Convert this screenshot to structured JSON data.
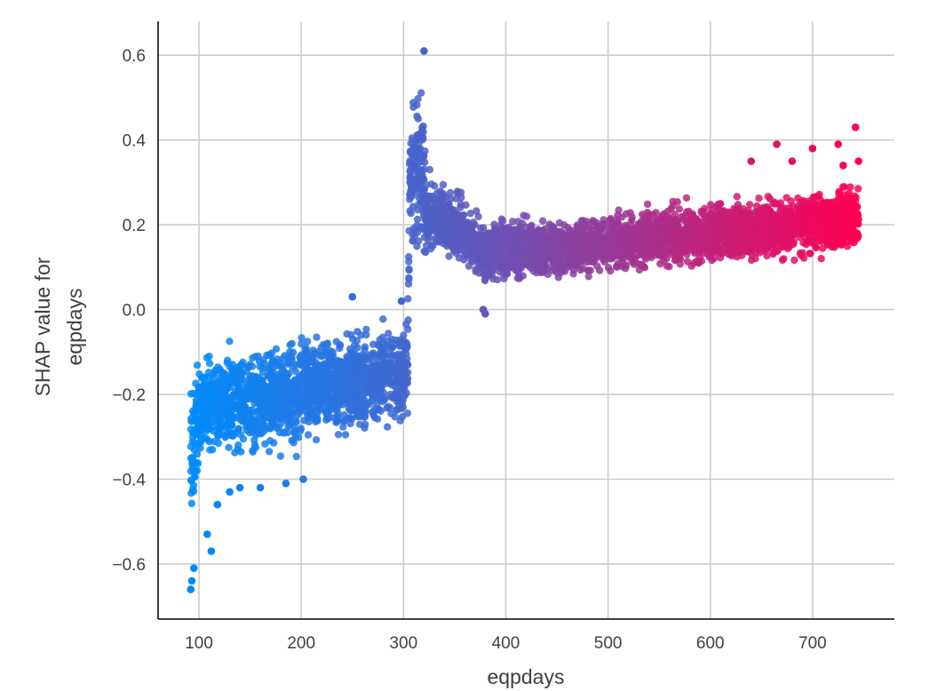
{
  "chart_data": {
    "type": "scatter",
    "title": "",
    "xlabel": "eqpdays",
    "ylabel": [
      "SHAP value for",
      "eqpdays"
    ],
    "xlim": [
      60,
      780
    ],
    "ylim": [
      -0.73,
      0.68
    ],
    "xticks": [
      100,
      200,
      300,
      400,
      500,
      600,
      700
    ],
    "yticks": [
      -0.6,
      -0.4,
      -0.2,
      0.0,
      0.2,
      0.4,
      0.6
    ],
    "ytick_labels": [
      "−0.6",
      "−0.4",
      "−0.2",
      "0.0",
      "0.2",
      "0.4",
      "0.6"
    ],
    "xtick_labels": [
      "100",
      "200",
      "300",
      "400",
      "500",
      "600",
      "700"
    ],
    "grid": true,
    "color_encoding": {
      "low": "#008bfb",
      "high": "#ff0052",
      "by": "eqpdays"
    },
    "series": [
      {
        "description_band": "dense SHAP band",
        "x": [
          92,
          100,
          120,
          150,
          180,
          199,
          205,
          250,
          290,
          304,
          306,
          312,
          318,
          322,
          340,
          355,
          380,
          400,
          450,
          500,
          550,
          600,
          650,
          700,
          745
        ],
        "y_low": [
          -0.58,
          -0.4,
          -0.39,
          -0.39,
          -0.39,
          -0.38,
          -0.35,
          -0.33,
          -0.32,
          -0.32,
          0.05,
          0.04,
          0.08,
          0.1,
          0.1,
          0.08,
          0.03,
          0.04,
          0.05,
          0.06,
          0.07,
          0.08,
          0.08,
          0.09,
          0.09
        ],
        "y_high": [
          -0.08,
          -0.07,
          -0.05,
          -0.04,
          -0.03,
          -0.02,
          -0.02,
          -0.01,
          0.01,
          0.02,
          0.56,
          0.6,
          0.6,
          0.35,
          0.33,
          0.3,
          0.24,
          0.24,
          0.24,
          0.25,
          0.27,
          0.28,
          0.3,
          0.32,
          0.33
        ]
      }
    ],
    "outliers": [
      {
        "x": 92,
        "y": -0.66
      },
      {
        "x": 93,
        "y": -0.64
      },
      {
        "x": 95,
        "y": -0.61
      },
      {
        "x": 108,
        "y": -0.53
      },
      {
        "x": 112,
        "y": -0.57
      },
      {
        "x": 118,
        "y": -0.46
      },
      {
        "x": 130,
        "y": -0.43
      },
      {
        "x": 140,
        "y": -0.42
      },
      {
        "x": 160,
        "y": -0.42
      },
      {
        "x": 185,
        "y": -0.41
      },
      {
        "x": 202,
        "y": -0.4
      },
      {
        "x": 250,
        "y": 0.03
      },
      {
        "x": 298,
        "y": 0.02
      },
      {
        "x": 380,
        "y": -0.01
      },
      {
        "x": 378,
        "y": 0.0
      },
      {
        "x": 640,
        "y": 0.35
      },
      {
        "x": 665,
        "y": 0.39
      },
      {
        "x": 680,
        "y": 0.35
      },
      {
        "x": 700,
        "y": 0.38
      },
      {
        "x": 725,
        "y": 0.39
      },
      {
        "x": 742,
        "y": 0.43
      },
      {
        "x": 730,
        "y": 0.34
      },
      {
        "x": 745,
        "y": 0.35
      },
      {
        "x": 320,
        "y": 0.61
      }
    ]
  }
}
